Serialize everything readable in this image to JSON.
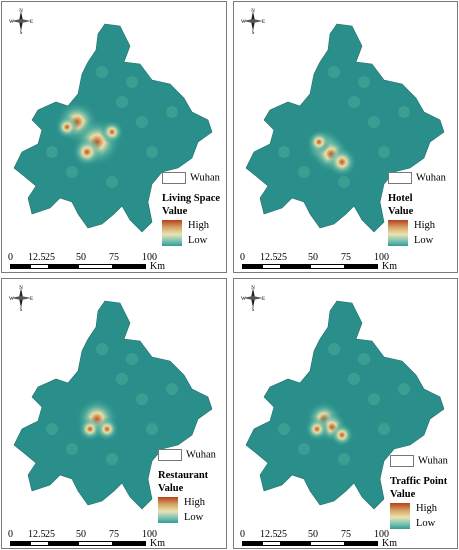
{
  "compass": {
    "n": "N",
    "s": "S",
    "w": "W",
    "e": "E"
  },
  "panels": [
    {
      "id": "living",
      "legend_region": "Wuhan",
      "layer": "Living Space",
      "value_label": "Value",
      "high": "High",
      "low": "Low"
    },
    {
      "id": "hotel",
      "legend_region": "Wuhan",
      "layer": "Hotel",
      "value_label": "Value",
      "high": "High",
      "low": "Low"
    },
    {
      "id": "restaurant",
      "legend_region": "Wuhan",
      "layer": "Restaurant",
      "value_label": "Value",
      "high": "High",
      "low": "Low"
    },
    {
      "id": "traffic",
      "legend_region": "Wuhan",
      "layer": "Traffic Point",
      "value_label": "Value",
      "high": "High",
      "low": "Low"
    }
  ],
  "scale": {
    "ticks": [
      "0",
      "12.5",
      "25",
      "50",
      "75",
      "100"
    ],
    "unit": "Km"
  },
  "colors": {
    "base": "#2a8f8a",
    "hot": "#c1531f",
    "warm": "#e9dfa8",
    "halo": "#5fb7a4"
  }
}
